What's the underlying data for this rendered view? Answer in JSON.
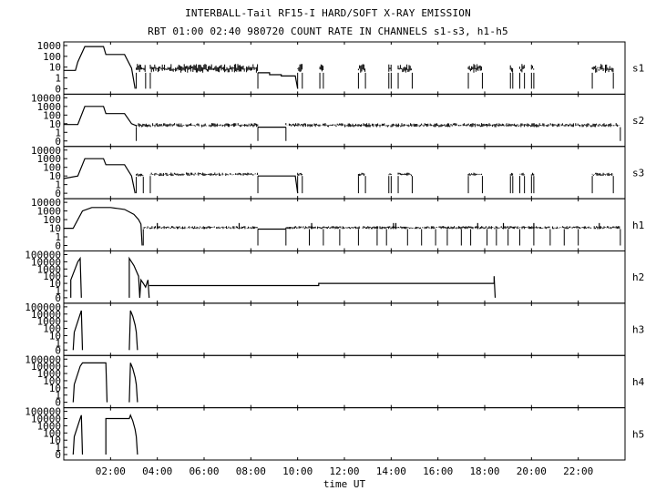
{
  "title": "INTERBALL-Tail RF15-I HARD/SOFT X-RAY EMISSION",
  "subtitle": "RBT 01:00 02:40 980720  COUNT RATE IN CHANNELS s1-s3, h1-h5",
  "chart_data": {
    "type": "line",
    "xlabel": "time UT",
    "xlim": [
      "00:00",
      "24:00"
    ],
    "x_ticks": [
      "02:00",
      "04:00",
      "06:00",
      "08:00",
      "10:00",
      "12:00",
      "14:00",
      "16:00",
      "18:00",
      "20:00",
      "22:00"
    ],
    "log_y": true,
    "grid": false,
    "panels": [
      {
        "name": "s1",
        "ytick_labels": [
          "1000",
          "100",
          "10",
          "1",
          "0"
        ],
        "segments": [
          {
            "kind": "line",
            "points": [
              [
                0.0,
                5
              ],
              [
                0.5,
                5
              ],
              [
                0.6,
                30
              ],
              [
                0.9,
                800
              ],
              [
                1.7,
                800
              ],
              [
                1.8,
                150
              ],
              [
                2.6,
                150
              ],
              [
                2.9,
                8
              ],
              [
                3.05,
                0
              ]
            ]
          },
          {
            "kind": "noise",
            "range": [
              3.1,
              3.5
            ],
            "base": 3,
            "hi": 20
          },
          {
            "kind": "noise",
            "range": [
              3.7,
              8.3
            ],
            "base": 3,
            "hi": 20
          },
          {
            "kind": "line",
            "points": [
              [
                8.3,
                3
              ],
              [
                8.8,
                3
              ],
              [
                8.8,
                2
              ],
              [
                9.3,
                2
              ],
              [
                9.3,
                1.5
              ],
              [
                9.9,
                1.5
              ],
              [
                10.0,
                0
              ]
            ]
          },
          {
            "kind": "noise",
            "range": [
              10.0,
              10.2
            ],
            "base": 3,
            "hi": 20
          },
          {
            "kind": "noise",
            "range": [
              10.95,
              11.1
            ],
            "base": 3,
            "hi": 20
          },
          {
            "kind": "noise",
            "range": [
              12.6,
              12.9
            ],
            "base": 3,
            "hi": 20
          },
          {
            "kind": "noise",
            "range": [
              13.9,
              14.0
            ],
            "base": 3,
            "hi": 20
          },
          {
            "kind": "noise",
            "range": [
              14.3,
              14.9
            ],
            "base": 3,
            "hi": 20
          },
          {
            "kind": "noise",
            "range": [
              17.3,
              17.9
            ],
            "base": 3,
            "hi": 20
          },
          {
            "kind": "noise",
            "range": [
              19.1,
              19.2
            ],
            "base": 3,
            "hi": 20
          },
          {
            "kind": "noise",
            "range": [
              19.5,
              19.7
            ],
            "base": 3,
            "hi": 20
          },
          {
            "kind": "noise",
            "range": [
              20.0,
              20.1
            ],
            "base": 3,
            "hi": 20
          },
          {
            "kind": "noise",
            "range": [
              22.6,
              23.5
            ],
            "base": 3,
            "hi": 20
          }
        ]
      },
      {
        "name": "s2",
        "ytick_labels": [
          "10000",
          "1000",
          "100",
          "10",
          "1",
          "0"
        ],
        "segments": [
          {
            "kind": "line",
            "points": [
              [
                0.0,
                8
              ],
              [
                0.6,
                8
              ],
              [
                0.9,
                1000
              ],
              [
                1.7,
                1000
              ],
              [
                1.8,
                150
              ],
              [
                2.6,
                150
              ],
              [
                2.9,
                10
              ],
              [
                3.1,
                6
              ]
            ]
          },
          {
            "kind": "noise",
            "range": [
              3.1,
              8.3
            ],
            "base": 4,
            "hi": 12
          },
          {
            "kind": "line",
            "points": [
              [
                8.3,
                4
              ],
              [
                9.5,
                4
              ]
            ]
          },
          {
            "kind": "noise",
            "range": [
              9.5,
              23.8
            ],
            "base": 4,
            "hi": 12
          }
        ]
      },
      {
        "name": "s3",
        "ytick_labels": [
          "10000",
          "1000",
          "100",
          "10",
          "1",
          "0"
        ],
        "segments": [
          {
            "kind": "line",
            "points": [
              [
                0.0,
                5
              ],
              [
                0.6,
                10
              ],
              [
                0.9,
                1000
              ],
              [
                1.7,
                1000
              ],
              [
                1.8,
                200
              ],
              [
                2.6,
                200
              ],
              [
                2.9,
                10
              ],
              [
                3.05,
                0
              ]
            ]
          },
          {
            "kind": "noise",
            "range": [
              3.1,
              3.4
            ],
            "base": 8,
            "hi": 20
          },
          {
            "kind": "noise",
            "range": [
              3.7,
              8.3
            ],
            "base": 10,
            "hi": 25
          },
          {
            "kind": "line",
            "points": [
              [
                8.3,
                10
              ],
              [
                9.9,
                10
              ],
              [
                10.0,
                0
              ]
            ]
          },
          {
            "kind": "noise",
            "range": [
              10.0,
              10.2
            ],
            "base": 10,
            "hi": 25
          },
          {
            "kind": "noise",
            "range": [
              12.6,
              12.9
            ],
            "base": 10,
            "hi": 25
          },
          {
            "kind": "noise",
            "range": [
              13.9,
              14.0
            ],
            "base": 10,
            "hi": 25
          },
          {
            "kind": "noise",
            "range": [
              14.3,
              14.9
            ],
            "base": 10,
            "hi": 25
          },
          {
            "kind": "noise",
            "range": [
              17.3,
              17.9
            ],
            "base": 10,
            "hi": 25
          },
          {
            "kind": "noise",
            "range": [
              19.1,
              19.2
            ],
            "base": 10,
            "hi": 25
          },
          {
            "kind": "noise",
            "range": [
              19.5,
              19.7
            ],
            "base": 10,
            "hi": 25
          },
          {
            "kind": "noise",
            "range": [
              20.0,
              20.1
            ],
            "base": 10,
            "hi": 25
          },
          {
            "kind": "noise",
            "range": [
              22.6,
              23.5
            ],
            "base": 10,
            "hi": 25
          }
        ]
      },
      {
        "name": "h1",
        "ytick_labels": [
          "10000",
          "1000",
          "100",
          "10",
          "1",
          "0"
        ],
        "segments": [
          {
            "kind": "line",
            "points": [
              [
                0.0,
                10
              ],
              [
                0.4,
                10
              ],
              [
                0.8,
                1000
              ],
              [
                1.2,
                2500
              ],
              [
                2.0,
                2500
              ],
              [
                2.6,
                1500
              ],
              [
                3.0,
                400
              ],
              [
                3.2,
                100
              ],
              [
                3.3,
                30
              ],
              [
                3.35,
                0
              ]
            ]
          },
          {
            "kind": "noise",
            "range": [
              3.4,
              8.3
            ],
            "base": 8,
            "hi": 18
          },
          {
            "kind": "line",
            "points": [
              [
                8.3,
                8
              ],
              [
                9.5,
                8
              ]
            ]
          },
          {
            "kind": "noise",
            "range": [
              9.5,
              23.8
            ],
            "base": 8,
            "hi": 18
          }
        ],
        "spikes_up": [
          4.0,
          7.5,
          10.6,
          14.1,
          14.2,
          17.7,
          18.8,
          20.1,
          22.9
        ],
        "spikes_down": [
          10.5,
          11.1,
          11.8,
          12.6,
          13.4,
          13.8,
          14.7,
          15.3,
          15.9,
          16.4,
          17.0,
          17.4,
          18.1,
          18.5,
          19.0,
          19.5,
          20.1,
          20.8,
          21.4,
          22.0
        ]
      },
      {
        "name": "h2",
        "ytick_labels": [
          "100000",
          "10000",
          "1000",
          "100",
          "10",
          "1",
          "0"
        ],
        "segments": [
          {
            "kind": "line",
            "points": [
              [
                0.3,
                0
              ],
              [
                0.3,
                30
              ],
              [
                0.6,
                10000
              ],
              [
                0.7,
                30000
              ],
              [
                0.75,
                0
              ]
            ]
          },
          {
            "kind": "line",
            "points": [
              [
                2.8,
                0
              ],
              [
                2.8,
                30000
              ],
              [
                3.0,
                3000
              ],
              [
                3.2,
                100
              ],
              [
                3.25,
                0
              ],
              [
                3.3,
                30
              ],
              [
                3.4,
                10
              ],
              [
                3.5,
                3
              ],
              [
                3.6,
                30
              ],
              [
                3.65,
                0
              ]
            ]
          },
          {
            "kind": "line",
            "points": [
              [
                3.65,
                5
              ],
              [
                10.9,
                5
              ],
              [
                10.9,
                10
              ],
              [
                18.4,
                10
              ],
              [
                18.4,
                100
              ],
              [
                18.45,
                0
              ]
            ]
          }
        ]
      },
      {
        "name": "h3",
        "ytick_labels": [
          "100000",
          "10000",
          "1000",
          "100",
          "10",
          "1",
          "0"
        ],
        "segments": [
          {
            "kind": "line",
            "points": [
              [
                0.4,
                0
              ],
              [
                0.45,
                30
              ],
              [
                0.7,
                10000
              ],
              [
                0.75,
                30000
              ],
              [
                0.8,
                0
              ]
            ]
          },
          {
            "kind": "line",
            "points": [
              [
                2.8,
                0
              ],
              [
                2.85,
                30000
              ],
              [
                2.95,
                5000
              ],
              [
                3.05,
                300
              ],
              [
                3.1,
                30
              ],
              [
                3.15,
                0
              ]
            ]
          }
        ]
      },
      {
        "name": "h4",
        "ytick_labels": [
          "100000",
          "10000",
          "1000",
          "100",
          "10",
          "1",
          "0"
        ],
        "segments": [
          {
            "kind": "line",
            "points": [
              [
                0.4,
                0
              ],
              [
                0.45,
                30
              ],
              [
                0.7,
                10000
              ],
              [
                0.8,
                30000
              ],
              [
                1.8,
                30000
              ],
              [
                1.85,
                0
              ]
            ]
          },
          {
            "kind": "line",
            "points": [
              [
                2.8,
                0
              ],
              [
                2.85,
                30000
              ],
              [
                2.95,
                5000
              ],
              [
                3.05,
                300
              ],
              [
                3.1,
                30
              ],
              [
                3.15,
                0
              ]
            ]
          }
        ]
      },
      {
        "name": "h5",
        "ytick_labels": [
          "100000",
          "10000",
          "1000",
          "100",
          "10",
          "1",
          "0"
        ],
        "segments": [
          {
            "kind": "line",
            "points": [
              [
                0.4,
                0
              ],
              [
                0.45,
                30
              ],
              [
                0.7,
                10000
              ],
              [
                0.75,
                30000
              ],
              [
                0.8,
                0
              ]
            ]
          },
          {
            "kind": "line",
            "points": [
              [
                1.8,
                0
              ],
              [
                1.8,
                10000
              ],
              [
                2.8,
                10000
              ],
              [
                2.85,
                30000
              ],
              [
                2.95,
                5000
              ],
              [
                3.05,
                300
              ],
              [
                3.1,
                30
              ],
              [
                3.15,
                0
              ]
            ]
          }
        ]
      }
    ]
  }
}
